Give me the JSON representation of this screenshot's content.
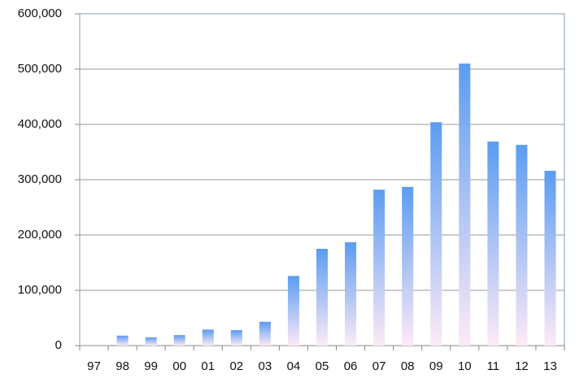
{
  "chart_data": {
    "type": "bar",
    "categories": [
      "97",
      "98",
      "99",
      "00",
      "01",
      "02",
      "03",
      "04",
      "05",
      "06",
      "07",
      "08",
      "09",
      "10",
      "11",
      "12",
      "13"
    ],
    "values": [
      0,
      18000,
      15000,
      19000,
      29000,
      28000,
      43000,
      126000,
      175000,
      187000,
      282000,
      287000,
      404000,
      510000,
      369000,
      363000,
      316000
    ],
    "color": "#5b9cf2",
    "color_bottom": "#fdeaf6",
    "ylim": [
      0,
      600000
    ],
    "yticks": [
      0,
      {
        "value": 100000,
        "label": "100,000"
      },
      {
        "value": 200000,
        "label": "200,000"
      },
      {
        "value": 300000,
        "label": "300,000"
      },
      {
        "value": 400000,
        "label": "400,000"
      },
      {
        "value": 500000,
        "label": "500,000"
      },
      {
        "value": 600000,
        "label": "600,000"
      }
    ],
    "grid": true
  }
}
